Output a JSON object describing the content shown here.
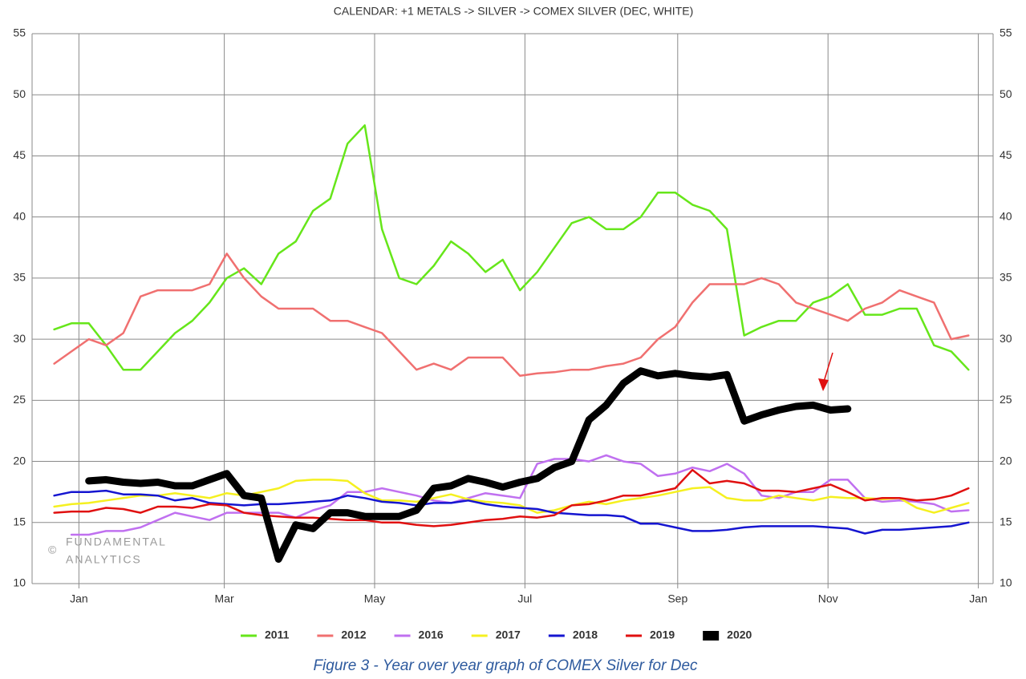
{
  "chart_data": {
    "type": "line",
    "title": "CALENDAR: +1 METALS -> SILVER -> COMEX SILVER (DEC, WHITE)",
    "watermark": {
      "symbol": "©",
      "lines": [
        "FUNDAMENTAL",
        "ANALYTICS"
      ]
    },
    "x": [
      -10,
      -3,
      4,
      11,
      18,
      25,
      32,
      39,
      46,
      53,
      60,
      67,
      74,
      81,
      88,
      95,
      102,
      109,
      116,
      123,
      130,
      137,
      144,
      151,
      158,
      165,
      172,
      179,
      186,
      193,
      200,
      207,
      214,
      221,
      228,
      235,
      242,
      249,
      256,
      263,
      270,
      277,
      284,
      291,
      298,
      305,
      312,
      319,
      326,
      333,
      340,
      347,
      354,
      361
    ],
    "xlim": [
      -19,
      371
    ],
    "xticks": [
      {
        "value": 0,
        "label": "Jan"
      },
      {
        "value": 59,
        "label": "Mar"
      },
      {
        "value": 120,
        "label": "May"
      },
      {
        "value": 181,
        "label": "Jul"
      },
      {
        "value": 243,
        "label": "Sep"
      },
      {
        "value": 304,
        "label": "Nov"
      },
      {
        "value": 365,
        "label": "Jan"
      }
    ],
    "ylim": [
      10,
      55
    ],
    "yticks": [
      10,
      15,
      20,
      25,
      30,
      35,
      40,
      45,
      50,
      55
    ],
    "grid": true,
    "legend": "bottom",
    "series": [
      {
        "name": "2011",
        "color": "#66e61a",
        "line_width": 2.5,
        "values": [
          30.8,
          31.3,
          31.3,
          29.5,
          27.5,
          27.5,
          29,
          30.5,
          31.5,
          33,
          35,
          35.8,
          34.5,
          37,
          38,
          40.5,
          41.5,
          46,
          47.5,
          39,
          35,
          34.5,
          36,
          38,
          37,
          35.5,
          36.5,
          34,
          35.5,
          37.5,
          39.5,
          40,
          39,
          39,
          40,
          42,
          42,
          41,
          40.5,
          39,
          30.3,
          31,
          31.5,
          31.5,
          33,
          33.5,
          34.5,
          32,
          32,
          32.5,
          32.5,
          29.5,
          29,
          27.5
        ]
      },
      {
        "name": "2012",
        "color": "#f07070",
        "line_width": 2.5,
        "values": [
          28,
          29,
          30,
          29.5,
          30.5,
          33.5,
          34,
          34,
          34,
          34.5,
          37,
          35,
          33.5,
          32.5,
          32.5,
          32.5,
          31.5,
          31.5,
          31,
          30.5,
          29,
          27.5,
          28,
          27.5,
          28.5,
          28.5,
          28.5,
          27,
          27.2,
          27.3,
          27.5,
          27.5,
          27.8,
          28,
          28.5,
          30,
          31,
          33,
          34.5,
          34.5,
          34.5,
          35,
          34.5,
          33,
          32.5,
          32,
          31.5,
          32.5,
          33,
          34,
          33.5,
          33,
          30,
          30.3
        ]
      },
      {
        "name": "2016",
        "color": "#c070f0",
        "line_width": 2.5,
        "values": [
          null,
          14,
          14,
          14.3,
          14.3,
          14.6,
          15.2,
          15.8,
          15.5,
          15.2,
          15.8,
          15.8,
          15.8,
          15.8,
          15.4,
          16,
          16.4,
          17.5,
          17.5,
          17.8,
          17.5,
          17.2,
          16.8,
          16.6,
          17,
          17.4,
          17.2,
          17,
          19.8,
          20.2,
          20.2,
          20,
          20.5,
          20,
          19.8,
          18.8,
          19,
          19.5,
          19.2,
          19.8,
          19,
          17.2,
          17,
          17.5,
          17.5,
          18.5,
          18.5,
          17,
          16.7,
          16.8,
          16.7,
          16.5,
          15.9,
          16
        ]
      },
      {
        "name": "2017",
        "color": "#f5f020",
        "line_width": 2.5,
        "values": [
          16.3,
          16.5,
          16.6,
          16.8,
          17,
          17.2,
          17.2,
          17.4,
          17.2,
          17,
          17.4,
          17.2,
          17.5,
          17.8,
          18.4,
          18.5,
          18.5,
          18.4,
          17.4,
          16.8,
          16.8,
          16.7,
          17,
          17.3,
          16.9,
          16.7,
          16.6,
          16.4,
          15.8,
          16,
          16.4,
          16.7,
          16.5,
          16.8,
          17,
          17.2,
          17.5,
          17.8,
          17.9,
          17,
          16.8,
          16.8,
          17.2,
          17,
          16.8,
          17.1,
          17,
          17,
          16.9,
          17,
          16.2,
          15.8,
          16.2,
          16.6
        ]
      },
      {
        "name": "2018",
        "color": "#1515d0",
        "line_width": 2.5,
        "values": [
          17.2,
          17.5,
          17.5,
          17.6,
          17.3,
          17.3,
          17.2,
          16.8,
          17,
          16.6,
          16.5,
          16.4,
          16.5,
          16.5,
          16.6,
          16.7,
          16.8,
          17.2,
          17,
          16.7,
          16.6,
          16.4,
          16.6,
          16.6,
          16.8,
          16.5,
          16.3,
          16.2,
          16.1,
          15.8,
          15.7,
          15.6,
          15.6,
          15.5,
          14.9,
          14.9,
          14.6,
          14.3,
          14.3,
          14.4,
          14.6,
          14.7,
          14.7,
          14.7,
          14.7,
          14.6,
          14.5,
          14.1,
          14.4,
          14.4,
          14.5,
          14.6,
          14.7,
          15
        ]
      },
      {
        "name": "2019",
        "color": "#e01010",
        "line_width": 2.5,
        "values": [
          15.8,
          15.9,
          15.9,
          16.2,
          16.1,
          15.8,
          16.3,
          16.3,
          16.2,
          16.5,
          16.4,
          15.8,
          15.6,
          15.5,
          15.4,
          15.4,
          15.3,
          15.2,
          15.2,
          15,
          15,
          14.8,
          14.7,
          14.8,
          15,
          15.2,
          15.3,
          15.5,
          15.4,
          15.6,
          16.4,
          16.5,
          16.8,
          17.2,
          17.2,
          17.5,
          17.8,
          19.3,
          18.2,
          18.4,
          18.2,
          17.6,
          17.6,
          17.5,
          17.8,
          18.1,
          17.5,
          16.8,
          17,
          17,
          16.8,
          16.9,
          17.2,
          17.8
        ]
      },
      {
        "name": "2020",
        "color": "#000000",
        "line_width": 9,
        "values": [
          null,
          null,
          18.4,
          18.5,
          18.3,
          18.2,
          18.3,
          18,
          18,
          18.5,
          19,
          17.2,
          17,
          12,
          14.8,
          14.5,
          15.8,
          15.8,
          15.5,
          15.5,
          15.5,
          16,
          17.8,
          18,
          18.6,
          18.3,
          17.9,
          18.3,
          18.6,
          19.5,
          20,
          23.4,
          24.6,
          26.4,
          27.4,
          27,
          27.2,
          27,
          26.9,
          27.1,
          23.3,
          23.8,
          24.2,
          24.5,
          24.6,
          24.2,
          24.3,
          null,
          null,
          null,
          null,
          null,
          null,
          null
        ]
      }
    ]
  },
  "caption": "Figure 3 - Year over year graph of COMEX Silver for Dec"
}
